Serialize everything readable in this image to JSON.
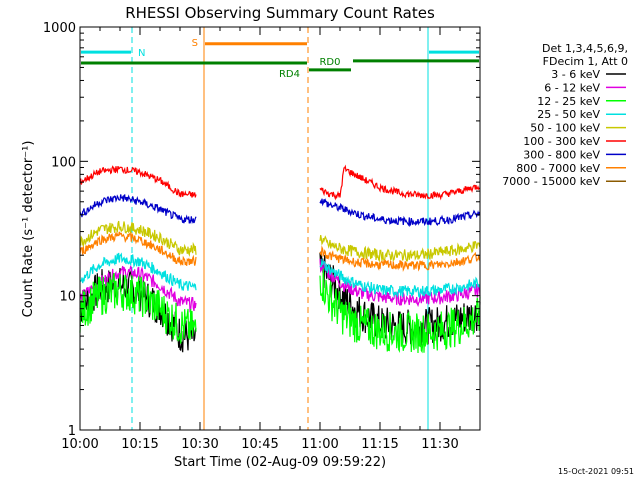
{
  "chart_data": {
    "type": "line",
    "title": "RHESSI Observing Summary Count Rates",
    "xlabel": "Start Time (02-Aug-09 09:59:22)",
    "ylabel": "Count Rate (s⁻¹ detector⁻¹)",
    "y_scale": "log",
    "ylim": [
      1,
      1000
    ],
    "xlim_minutes": [
      0,
      100
    ],
    "x_ticks": [
      {
        "m": 0,
        "label": "10:00"
      },
      {
        "m": 15,
        "label": "10:15"
      },
      {
        "m": 30,
        "label": "10:30"
      },
      {
        "m": 45,
        "label": "10:45"
      },
      {
        "m": 60,
        "label": "11:00"
      },
      {
        "m": 75,
        "label": "11:15"
      },
      {
        "m": 90,
        "label": "11:30"
      }
    ],
    "y_ticks": [
      {
        "v": 1,
        "label": "1"
      },
      {
        "v": 10,
        "label": "10"
      },
      {
        "v": 100,
        "label": "100"
      },
      {
        "v": 1000,
        "label": "1000"
      }
    ],
    "legend": {
      "header": [
        "Det 1,3,4,5,6,9,",
        "FDecim 1, Att 0"
      ],
      "placement": "right"
    },
    "series": [
      {
        "name": "3 - 6 keV",
        "color": "#000000",
        "x": [
          0,
          5,
          10,
          15,
          20,
          25,
          29,
          60,
          62,
          66,
          70,
          75,
          80,
          85,
          90,
          95,
          100
        ],
        "values": [
          8.0,
          11.5,
          12.0,
          10.5,
          8.2,
          5.2,
          4.8,
          16.0,
          14.0,
          9.5,
          7.5,
          6.2,
          5.8,
          5.8,
          6.2,
          6.8,
          7.5
        ]
      },
      {
        "name": "6 - 12 keV",
        "color": "#e000e0",
        "x": [
          0,
          5,
          10,
          15,
          20,
          25,
          29,
          60,
          62,
          66,
          70,
          75,
          80,
          85,
          90,
          95,
          100
        ],
        "values": [
          9.5,
          12.5,
          15.0,
          14.5,
          12.0,
          9.0,
          8.5,
          17.0,
          15.0,
          12.0,
          10.5,
          9.8,
          9.5,
          9.5,
          9.7,
          10.2,
          11.0
        ]
      },
      {
        "name": "12 - 25 keV",
        "color": "#00ff00",
        "x": [
          0,
          5,
          10,
          15,
          20,
          25,
          29,
          60,
          62,
          66,
          70,
          75,
          80,
          85,
          90,
          95,
          100
        ],
        "values": [
          7.5,
          10.0,
          11.0,
          10.0,
          8.0,
          6.0,
          5.5,
          14.0,
          10.0,
          7.0,
          6.0,
          5.5,
          5.3,
          5.3,
          5.5,
          6.0,
          7.0
        ]
      },
      {
        "name": "25 - 50 keV",
        "color": "#00e0e0",
        "x": [
          0,
          5,
          10,
          15,
          20,
          25,
          29,
          60,
          62,
          66,
          70,
          75,
          80,
          85,
          90,
          95,
          100
        ],
        "values": [
          13.0,
          17.0,
          19.0,
          18.0,
          15.0,
          12.0,
          11.5,
          18.0,
          16.0,
          13.5,
          12.0,
          11.0,
          10.8,
          10.8,
          11.0,
          11.5,
          12.5
        ]
      },
      {
        "name": "50 - 100 keV",
        "color": "#c8c800",
        "x": [
          0,
          5,
          10,
          15,
          20,
          25,
          29,
          60,
          62,
          66,
          70,
          75,
          80,
          85,
          90,
          95,
          100
        ],
        "values": [
          25.0,
          31.0,
          33.0,
          31.0,
          27.0,
          22.0,
          22.0,
          27.0,
          24.0,
          22.0,
          21.0,
          20.0,
          20.0,
          20.0,
          21.0,
          22.0,
          24.0
        ]
      },
      {
        "name": "100 - 300 keV",
        "color": "#ff0000",
        "x": [
          0,
          5,
          10,
          15,
          20,
          25,
          29,
          60,
          62,
          65,
          66,
          70,
          75,
          80,
          85,
          90,
          95,
          100
        ],
        "values": [
          70.0,
          84.0,
          88.0,
          83.0,
          72.0,
          57.0,
          56.0,
          62.0,
          58.0,
          55.0,
          88.0,
          76.0,
          64.0,
          58.0,
          56.0,
          56.0,
          60.0,
          66.0
        ]
      },
      {
        "name": "300 - 800 keV",
        "color": "#0000c8",
        "x": [
          0,
          5,
          10,
          15,
          20,
          25,
          29,
          60,
          62,
          66,
          70,
          75,
          80,
          85,
          90,
          95,
          100
        ],
        "values": [
          40.0,
          50.0,
          54.0,
          50.0,
          44.0,
          37.0,
          37.0,
          52.0,
          48.0,
          44.0,
          40.0,
          37.0,
          36.0,
          35.5,
          36.0,
          38.0,
          41.0
        ]
      },
      {
        "name": "800 - 7000 keV",
        "color": "#ff8000",
        "x": [
          0,
          5,
          10,
          15,
          20,
          25,
          29,
          60,
          62,
          66,
          70,
          75,
          80,
          85,
          90,
          95,
          100
        ],
        "values": [
          21.0,
          26.0,
          28.0,
          26.0,
          22.0,
          18.0,
          18.0,
          22.0,
          20.0,
          18.5,
          17.5,
          17.0,
          16.8,
          16.8,
          17.0,
          18.0,
          19.5
        ]
      },
      {
        "name": "7000 - 15000 keV",
        "color": "#8b5a00",
        "x": [],
        "values": []
      }
    ],
    "annotations": [
      {
        "text": "N",
        "color": "#00e0e0",
        "x0": 0,
        "x1": 13,
        "level": 650
      },
      {
        "text": "S",
        "color": "#ff8000",
        "x0": 31,
        "x1": 57,
        "level": 750
      },
      {
        "text": "RD4",
        "color": "#008000",
        "x0": 0,
        "x1": 57,
        "level": 540
      },
      {
        "text": "RD0",
        "color": "#008000",
        "x0": 57,
        "x1": 68,
        "level": 480
      },
      {
        "text": "",
        "color": "#008000",
        "x0": 68,
        "x1": 100,
        "level": 560
      },
      {
        "text": "",
        "color": "#00e0e0",
        "x0": 87,
        "x1": 100,
        "level": 650
      }
    ],
    "vertical_markers": [
      {
        "m": 0,
        "color": "#00e0e0",
        "style": "solid"
      },
      {
        "m": 13,
        "color": "#00e0e0",
        "style": "dashed"
      },
      {
        "m": 31,
        "color": "#ff8000",
        "style": "solid"
      },
      {
        "m": 57,
        "color": "#ff8000",
        "style": "dashed"
      },
      {
        "m": 87,
        "color": "#00e0e0",
        "style": "solid"
      },
      {
        "m": 100,
        "color": "#00e0e0",
        "style": "dashed"
      }
    ],
    "grid": false
  },
  "footer_timestamp": "15-Oct-2021 09:51"
}
